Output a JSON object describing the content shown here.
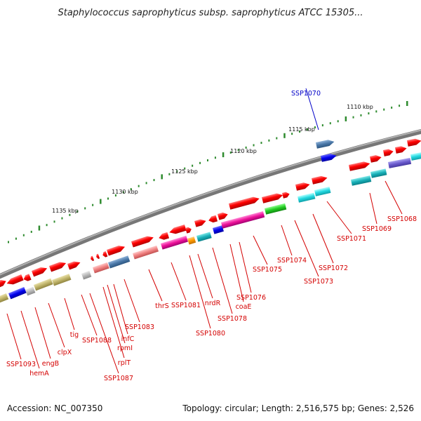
{
  "title": "Staphylococcus saprophyticus subsp. saprophyticus ATCC 15305...",
  "ticks": [
    "1110 kbp",
    "1115 kbp",
    "1120 kbp",
    "1125 kbp",
    "1130 kbp",
    "1135 kbp"
  ],
  "gene_labels": [
    {
      "id": "SSP1070",
      "highlight": true
    },
    {
      "id": "SSP1068"
    },
    {
      "id": "SSP1069"
    },
    {
      "id": "SSP1071"
    },
    {
      "id": "SSP1072"
    },
    {
      "id": "SSP1073"
    },
    {
      "id": "SSP1074"
    },
    {
      "id": "SSP1075"
    },
    {
      "id": "SSP1076"
    },
    {
      "id": "coaE"
    },
    {
      "id": "SSP1078"
    },
    {
      "id": "nrdR"
    },
    {
      "id": "SSP1080"
    },
    {
      "id": "SSP1081"
    },
    {
      "id": "thrS"
    },
    {
      "id": "SSP1083"
    },
    {
      "id": "infC"
    },
    {
      "id": "rpmI"
    },
    {
      "id": "rplT"
    },
    {
      "id": "SSP1087"
    },
    {
      "id": "SSP1088"
    },
    {
      "id": "tig"
    },
    {
      "id": "clpX"
    },
    {
      "id": "engB"
    },
    {
      "id": "hemA"
    },
    {
      "id": "SSP1093"
    }
  ],
  "footer": {
    "accession": "Accession: NC_007350",
    "summary": "Topology: circular; Length: 2,516,575 bp; Genes: 2,526"
  },
  "colors": {
    "backbone": "#7a7a7a",
    "tick": "#2e8b2e",
    "label_line": "#d40000",
    "highlight": "#0000c8"
  }
}
